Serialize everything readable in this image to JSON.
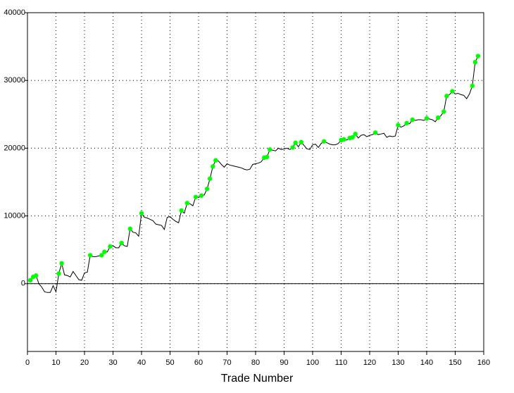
{
  "chart_data": {
    "type": "line",
    "x_label": "Trade Number",
    "xlim": [
      0,
      160
    ],
    "xticks": [
      0,
      10,
      20,
      30,
      40,
      50,
      60,
      70,
      80,
      90,
      100,
      110,
      120,
      130,
      140,
      150,
      160
    ],
    "ylim": [
      -10000,
      40000
    ],
    "yticks": [
      0,
      10000,
      20000,
      30000,
      40000
    ],
    "grid": true,
    "series": [
      {
        "type": "line",
        "color": "#000000",
        "x": [
          1,
          2,
          3,
          4,
          5,
          6,
          7,
          8,
          9,
          10,
          11,
          12,
          13,
          14,
          15,
          16,
          17,
          18,
          19,
          20,
          21,
          22,
          23,
          24,
          25,
          26,
          27,
          28,
          29,
          30,
          31,
          32,
          33,
          34,
          35,
          36,
          37,
          38,
          39,
          40,
          41,
          42,
          43,
          44,
          45,
          46,
          47,
          48,
          49,
          50,
          51,
          52,
          53,
          54,
          55,
          56,
          57,
          58,
          59,
          60,
          61,
          62,
          63,
          64,
          65,
          66,
          67,
          68,
          69,
          70,
          71,
          72,
          73,
          74,
          75,
          76,
          77,
          78,
          79,
          80,
          81,
          82,
          83,
          84,
          85,
          86,
          87,
          88,
          89,
          90,
          91,
          92,
          93,
          94,
          95,
          96,
          97,
          98,
          99,
          100,
          101,
          102,
          103,
          104,
          105,
          106,
          107,
          108,
          109,
          110,
          111,
          112,
          113,
          114,
          115,
          116,
          117,
          118,
          119,
          120,
          121,
          122,
          123,
          124,
          125,
          126,
          127,
          128,
          129,
          130,
          131,
          132,
          133,
          134,
          135,
          136,
          137,
          138,
          139,
          140,
          141,
          142,
          143,
          144,
          145,
          146,
          147,
          148,
          149,
          150,
          151,
          152,
          153,
          154,
          155,
          156,
          157,
          158
        ],
        "values": [
          500,
          1000,
          1200,
          0,
          -500,
          -1200,
          -1300,
          -1300,
          -300,
          -1200,
          1500,
          3000,
          1300,
          1200,
          1000,
          1800,
          1200,
          600,
          500,
          1600,
          1700,
          4200,
          4000,
          4000,
          4100,
          4200,
          4700,
          4700,
          5500,
          5600,
          5300,
          5300,
          6000,
          5600,
          5500,
          8100,
          7600,
          7500,
          7000,
          10400,
          9800,
          9700,
          9500,
          9300,
          8800,
          8700,
          8600,
          8000,
          9800,
          9900,
          9500,
          9200,
          9000,
          10800,
          10400,
          11900,
          11800,
          11500,
          12800,
          12700,
          13000,
          13100,
          14000,
          15500,
          17300,
          18200,
          18100,
          17600,
          17200,
          17700,
          17500,
          17400,
          17300,
          17200,
          17100,
          16900,
          16800,
          16900,
          17600,
          17700,
          17800,
          18000,
          18600,
          18700,
          19800,
          19700,
          19600,
          20000,
          19800,
          19900,
          20000,
          19800,
          20100,
          20800,
          20200,
          20900,
          20400,
          19900,
          19800,
          20500,
          20600,
          20100,
          20700,
          21000,
          20800,
          20600,
          20500,
          20500,
          20700,
          21200,
          21300,
          21200,
          21500,
          21600,
          22100,
          21500,
          21900,
          22000,
          21700,
          21900,
          22000,
          22300,
          22000,
          22100,
          22200,
          21600,
          21800,
          21700,
          21800,
          23400,
          23100,
          23300,
          23700,
          23600,
          24200,
          24100,
          24200,
          24200,
          24100,
          24400,
          24300,
          24200,
          23900,
          24500,
          24800,
          25400,
          27700,
          27900,
          28400,
          28000,
          28100,
          27900,
          27800,
          27300,
          28000,
          29200,
          32700,
          33600
        ]
      },
      {
        "type": "scatter",
        "color": "#00ff00",
        "x": [
          1,
          2,
          3,
          11,
          12,
          22,
          26,
          27,
          29,
          33,
          36,
          40,
          54,
          56,
          59,
          61,
          63,
          64,
          65,
          66,
          83,
          84,
          85,
          93,
          94,
          96,
          104,
          110,
          111,
          113,
          114,
          115,
          122,
          130,
          133,
          135,
          140,
          144,
          146,
          147,
          149,
          156,
          157,
          158
        ],
        "values": [
          500,
          1000,
          1200,
          1500,
          3000,
          4200,
          4200,
          4700,
          5500,
          6000,
          8100,
          10400,
          10800,
          11900,
          12800,
          13000,
          14000,
          15500,
          17300,
          18200,
          18600,
          18700,
          19800,
          20100,
          20800,
          20900,
          21000,
          21200,
          21300,
          21500,
          21600,
          22100,
          22300,
          23400,
          23700,
          24200,
          24400,
          24500,
          25400,
          27700,
          28400,
          29200,
          32700,
          33600
        ]
      }
    ]
  }
}
